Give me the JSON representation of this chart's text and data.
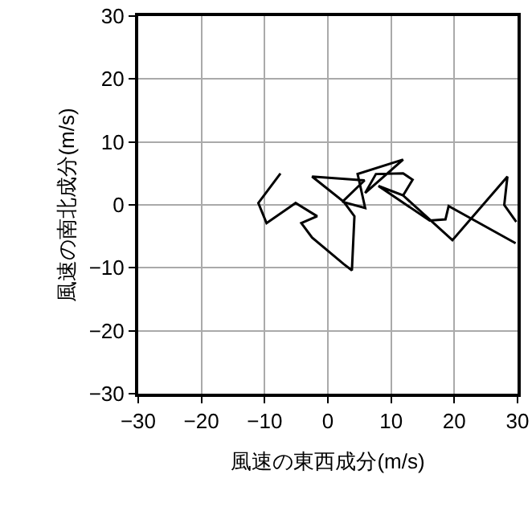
{
  "chart_data": {
    "type": "line",
    "xlabel": "風速の東西成分(m/s)",
    "ylabel": "風速の南北成分(m/s)",
    "x": [
      -7.5,
      -11,
      -9.7,
      -5.1,
      -1.7,
      -4.2,
      -2.5,
      2.5,
      3.8,
      4.2,
      2.5,
      -2.5,
      5.8,
      2.3,
      5.9,
      4.7,
      11.9,
      5.9,
      7.6,
      11.9,
      13.4,
      11.9,
      8,
      16.1,
      18.6,
      19.1,
      29.7
    ],
    "series": [
      {
        "color": "#000000",
        "values": [
          5.0,
          0.3,
          -2.9,
          0.3,
          -1.8,
          -2.9,
          -5.2,
          -9.4,
          -10.4,
          -1.8,
          0.5,
          4.5,
          3.9,
          0.5,
          -0.5,
          4.9,
          7.2,
          1.9,
          4.9,
          5.0,
          4.0,
          1.5,
          3.0,
          -2.5,
          -2.3,
          -0.2,
          -6.1
        ]
      },
      {
        "color": "#000000",
        "x": [
          11.9,
          19.7,
          28.4,
          27.9,
          29.8
        ],
        "values": [
          1.5,
          -5.6,
          4.5,
          0.0,
          -2.7
        ]
      }
    ],
    "xlim": [
      -30,
      30
    ],
    "ylim": [
      -30,
      30
    ],
    "xticks": [
      {
        "value": -30,
        "label": "−30"
      },
      {
        "value": -20,
        "label": "−20"
      },
      {
        "value": -10,
        "label": "−10"
      },
      0,
      10,
      20,
      30
    ],
    "yticks": [
      {
        "value": -30,
        "label": "−30"
      },
      {
        "value": -20,
        "label": "−20"
      },
      {
        "value": -10,
        "label": "−10"
      },
      0,
      10,
      20,
      30
    ],
    "grid": true,
    "marker": "none",
    "line_style": "solid"
  }
}
